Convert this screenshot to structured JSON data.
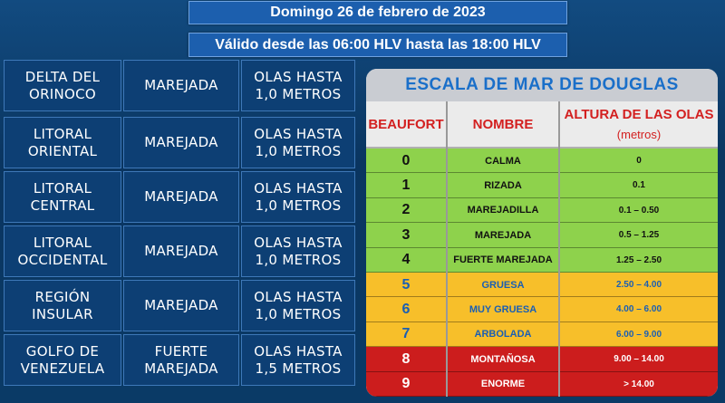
{
  "header": {
    "date": "Domingo 26 de febrero de 2023",
    "validity": "Válido desde las 06:00 HLV hasta las 18:00 HLV"
  },
  "forecast": [
    {
      "region": "DELTA DEL\nORINOCO",
      "condition": "MAREJADA",
      "waves": "OLAS HASTA\n1,0 METROS"
    },
    {
      "region": "LITORAL\nORIENTAL",
      "condition": "MAREJADA",
      "waves": "OLAS HASTA\n1,0 METROS"
    },
    {
      "region": "LITORAL\nCENTRAL",
      "condition": "MAREJADA",
      "waves": "OLAS HASTA\n1,0 METROS"
    },
    {
      "region": "LITORAL\nOCCIDENTAL",
      "condition": "MAREJADA",
      "waves": "OLAS HASTA\n1,0 METROS"
    },
    {
      "region": "REGIÓN\nINSULAR",
      "condition": "MAREJADA",
      "waves": "OLAS HASTA\n1,0 METROS"
    },
    {
      "region": "GOLFO DE\nVENEZUELA",
      "condition": "FUERTE\nMAREJADA",
      "waves": "OLAS HASTA\n1,5 METROS"
    }
  ],
  "scale": {
    "title": "ESCALA  DE MAR DE DOUGLAS",
    "headers": {
      "beaufort": "BEAUFORT",
      "name": "NOMBRE",
      "height": "ALTURA DE LAS OLAS",
      "unit": "(metros)"
    },
    "rows": [
      {
        "level": "0",
        "name": "CALMA",
        "height": "0",
        "band": "green"
      },
      {
        "level": "1",
        "name": "RIZADA",
        "height": "0.1",
        "band": "green"
      },
      {
        "level": "2",
        "name": "MAREJADILLA",
        "height": "0.1 – 0.50",
        "band": "green"
      },
      {
        "level": "3",
        "name": "MAREJADA",
        "height": "0.5 – 1.25",
        "band": "green"
      },
      {
        "level": "4",
        "name": "FUERTE MAREJADA",
        "height": "1.25 – 2.50",
        "band": "green"
      },
      {
        "level": "5",
        "name": "GRUESA",
        "height": "2.50 – 4.00",
        "band": "yellow"
      },
      {
        "level": "6",
        "name": "MUY GRUESA",
        "height": "4.00 – 6.00",
        "band": "yellow"
      },
      {
        "level": "7",
        "name": "ARBOLADA",
        "height": "6.00 – 9.00",
        "band": "yellow"
      },
      {
        "level": "8",
        "name": "MONTAÑOSA",
        "height": "9.00 – 14.00",
        "band": "red"
      },
      {
        "level": "9",
        "name": "ENORME",
        "height": "> 14.00",
        "band": "red"
      }
    ]
  },
  "colors": {
    "green": "#8ed24c",
    "yellow": "#f7bf2a",
    "red": "#cc1d1d",
    "cell_bg": "#0d3f74",
    "banner_bg": "#1c5fae"
  }
}
